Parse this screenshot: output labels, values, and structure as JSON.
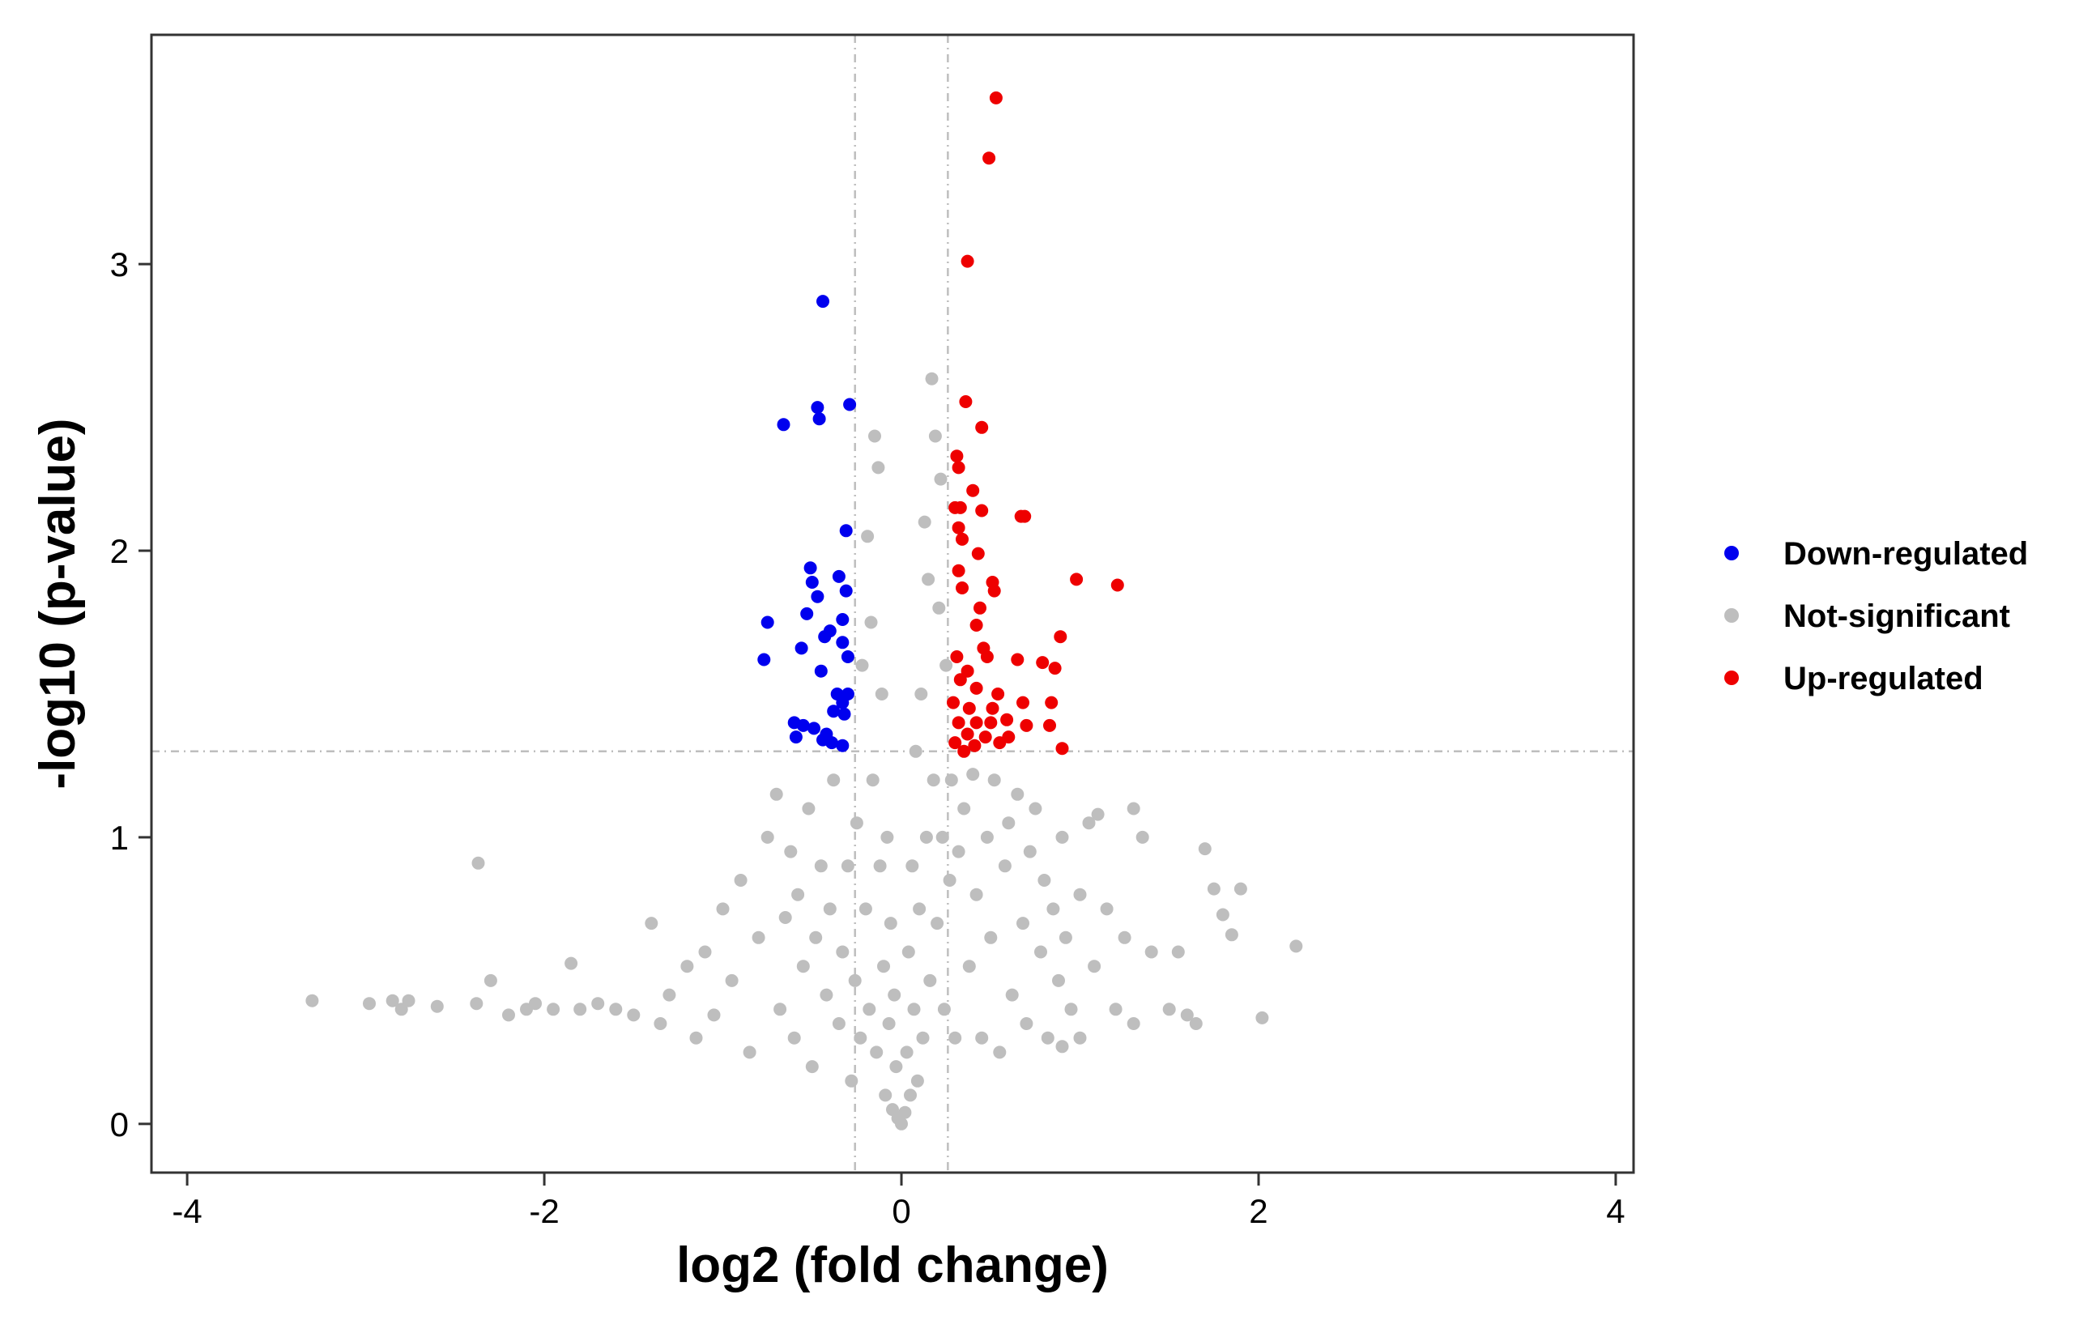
{
  "chart_data": {
    "type": "scatter",
    "title": "",
    "xlabel": "log2 (fold change)",
    "ylabel": "-log10 (p-value)",
    "xlim": [
      -4.2,
      4.1
    ],
    "ylim": [
      -0.17,
      3.8
    ],
    "xticks": [
      -4,
      -2,
      0,
      2,
      4
    ],
    "xtick_labels": [
      "-4",
      "-2",
      "0",
      "2",
      "4"
    ],
    "yticks": [
      0,
      1,
      2,
      3
    ],
    "ytick_labels": [
      "0",
      "1",
      "2",
      "3"
    ],
    "grid": false,
    "legend_position": "right",
    "thresholds": {
      "x": [
        -0.26,
        0.26
      ],
      "y": 1.3
    },
    "colors": {
      "down": "#0000EE",
      "ns": "#BEBEBE",
      "up": "#EE0000",
      "threshold_line": "#BEBEBE",
      "frame": "#333333"
    },
    "series": [
      {
        "name": "Down-regulated",
        "color": "#0000EE",
        "points": [
          [
            -0.44,
            2.87
          ],
          [
            -0.47,
            2.5
          ],
          [
            -0.46,
            2.46
          ],
          [
            -0.29,
            2.51
          ],
          [
            -0.66,
            2.44
          ],
          [
            -0.31,
            2.07
          ],
          [
            -0.51,
            1.94
          ],
          [
            -0.5,
            1.89
          ],
          [
            -0.35,
            1.91
          ],
          [
            -0.47,
            1.84
          ],
          [
            -0.31,
            1.86
          ],
          [
            -0.53,
            1.78
          ],
          [
            -0.4,
            1.72
          ],
          [
            -0.33,
            1.76
          ],
          [
            -0.75,
            1.75
          ],
          [
            -0.43,
            1.7
          ],
          [
            -0.56,
            1.66
          ],
          [
            -0.33,
            1.68
          ],
          [
            -0.77,
            1.62
          ],
          [
            -0.3,
            1.63
          ],
          [
            -0.45,
            1.58
          ],
          [
            -0.36,
            1.5
          ],
          [
            -0.3,
            1.5
          ],
          [
            -0.33,
            1.47
          ],
          [
            -0.38,
            1.44
          ],
          [
            -0.32,
            1.43
          ],
          [
            -0.6,
            1.4
          ],
          [
            -0.55,
            1.39
          ],
          [
            -0.49,
            1.38
          ],
          [
            -0.44,
            1.34
          ],
          [
            -0.39,
            1.33
          ],
          [
            -0.33,
            1.32
          ],
          [
            -0.59,
            1.35
          ],
          [
            -0.42,
            1.36
          ]
        ]
      },
      {
        "name": "Not-significant",
        "color": "#BEBEBE",
        "points": [
          [
            -3.3,
            0.43
          ],
          [
            -2.98,
            0.42
          ],
          [
            -2.85,
            0.43
          ],
          [
            -2.8,
            0.4
          ],
          [
            -2.76,
            0.43
          ],
          [
            -2.6,
            0.41
          ],
          [
            -2.37,
            0.91
          ],
          [
            -2.38,
            0.42
          ],
          [
            -2.3,
            0.5
          ],
          [
            -2.2,
            0.38
          ],
          [
            -2.1,
            0.4
          ],
          [
            -2.05,
            0.42
          ],
          [
            -1.95,
            0.4
          ],
          [
            -1.85,
            0.56
          ],
          [
            -1.8,
            0.4
          ],
          [
            -1.7,
            0.42
          ],
          [
            -1.6,
            0.4
          ],
          [
            -1.5,
            0.38
          ],
          [
            -1.4,
            0.7
          ],
          [
            -1.35,
            0.35
          ],
          [
            -1.3,
            0.45
          ],
          [
            -1.2,
            0.55
          ],
          [
            -1.15,
            0.3
          ],
          [
            -1.1,
            0.6
          ],
          [
            -1.05,
            0.38
          ],
          [
            -1.0,
            0.75
          ],
          [
            -0.95,
            0.5
          ],
          [
            -0.9,
            0.85
          ],
          [
            -0.85,
            0.25
          ],
          [
            -0.8,
            0.65
          ],
          [
            -0.75,
            1.0
          ],
          [
            -0.7,
            1.15
          ],
          [
            -0.68,
            0.4
          ],
          [
            -0.65,
            0.72
          ],
          [
            -0.62,
            0.95
          ],
          [
            -0.6,
            0.3
          ],
          [
            -0.58,
            0.8
          ],
          [
            -0.55,
            0.55
          ],
          [
            -0.52,
            1.1
          ],
          [
            -0.5,
            0.2
          ],
          [
            -0.48,
            0.65
          ],
          [
            -0.45,
            0.9
          ],
          [
            -0.42,
            0.45
          ],
          [
            -0.4,
            0.75
          ],
          [
            -0.38,
            1.2
          ],
          [
            -0.35,
            0.35
          ],
          [
            -0.33,
            0.6
          ],
          [
            -0.3,
            0.9
          ],
          [
            -0.28,
            0.15
          ],
          [
            -0.26,
            0.5
          ],
          [
            -0.25,
            1.05
          ],
          [
            -0.23,
            0.3
          ],
          [
            -0.22,
            1.6
          ],
          [
            -0.2,
            0.75
          ],
          [
            -0.19,
            2.05
          ],
          [
            -0.18,
            0.4
          ],
          [
            -0.17,
            1.75
          ],
          [
            -0.16,
            1.2
          ],
          [
            -0.15,
            2.4
          ],
          [
            -0.14,
            0.25
          ],
          [
            -0.13,
            2.29
          ],
          [
            -0.12,
            0.9
          ],
          [
            -0.11,
            1.5
          ],
          [
            -0.1,
            0.55
          ],
          [
            -0.09,
            0.1
          ],
          [
            -0.08,
            1.0
          ],
          [
            -0.07,
            0.35
          ],
          [
            -0.06,
            0.7
          ],
          [
            -0.05,
            0.05
          ],
          [
            -0.04,
            0.45
          ],
          [
            -0.03,
            0.2
          ],
          [
            -0.02,
            0.02
          ],
          [
            0.0,
            0.0
          ],
          [
            0.02,
            0.04
          ],
          [
            0.03,
            0.25
          ],
          [
            0.04,
            0.6
          ],
          [
            0.05,
            0.1
          ],
          [
            0.06,
            0.9
          ],
          [
            0.07,
            0.4
          ],
          [
            0.08,
            1.3
          ],
          [
            0.09,
            0.15
          ],
          [
            0.1,
            0.75
          ],
          [
            0.11,
            1.5
          ],
          [
            0.12,
            0.3
          ],
          [
            0.13,
            2.1
          ],
          [
            0.14,
            1.0
          ],
          [
            0.15,
            1.9
          ],
          [
            0.16,
            0.5
          ],
          [
            0.17,
            2.6
          ],
          [
            0.18,
            1.2
          ],
          [
            0.19,
            2.4
          ],
          [
            0.2,
            0.7
          ],
          [
            0.21,
            1.8
          ],
          [
            0.22,
            2.25
          ],
          [
            0.23,
            1.0
          ],
          [
            0.24,
            0.4
          ],
          [
            0.25,
            1.6
          ],
          [
            0.27,
            0.85
          ],
          [
            0.28,
            1.2
          ],
          [
            0.3,
            0.3
          ],
          [
            0.32,
            0.95
          ],
          [
            0.35,
            1.1
          ],
          [
            0.38,
            0.55
          ],
          [
            0.4,
            1.22
          ],
          [
            0.42,
            0.8
          ],
          [
            0.45,
            0.3
          ],
          [
            0.48,
            1.0
          ],
          [
            0.5,
            0.65
          ],
          [
            0.52,
            1.2
          ],
          [
            0.55,
            0.25
          ],
          [
            0.58,
            0.9
          ],
          [
            0.6,
            1.05
          ],
          [
            0.62,
            0.45
          ],
          [
            0.65,
            1.15
          ],
          [
            0.68,
            0.7
          ],
          [
            0.7,
            0.35
          ],
          [
            0.72,
            0.95
          ],
          [
            0.75,
            1.1
          ],
          [
            0.78,
            0.6
          ],
          [
            0.8,
            0.85
          ],
          [
            0.82,
            0.3
          ],
          [
            0.85,
            0.75
          ],
          [
            0.88,
            0.5
          ],
          [
            0.9,
            1.0
          ],
          [
            0.92,
            0.65
          ],
          [
            0.95,
            0.4
          ],
          [
            1.0,
            0.8
          ],
          [
            1.05,
            1.05
          ],
          [
            1.08,
            0.55
          ],
          [
            1.1,
            1.08
          ],
          [
            1.15,
            0.75
          ],
          [
            1.2,
            0.4
          ],
          [
            1.25,
            0.65
          ],
          [
            1.3,
            1.1
          ],
          [
            1.35,
            1.0
          ],
          [
            1.4,
            0.6
          ],
          [
            1.5,
            0.4
          ],
          [
            1.55,
            0.6
          ],
          [
            1.6,
            0.38
          ],
          [
            1.65,
            0.35
          ],
          [
            1.7,
            0.96
          ],
          [
            1.75,
            0.82
          ],
          [
            1.8,
            0.73
          ],
          [
            1.85,
            0.66
          ],
          [
            1.9,
            0.82
          ],
          [
            2.02,
            0.37
          ],
          [
            2.21,
            0.62
          ],
          [
            1.3,
            0.35
          ],
          [
            1.0,
            0.3
          ],
          [
            0.9,
            0.27
          ]
        ]
      },
      {
        "name": "Up-regulated",
        "color": "#EE0000",
        "points": [
          [
            0.53,
            3.58
          ],
          [
            0.49,
            3.37
          ],
          [
            0.37,
            3.01
          ],
          [
            0.36,
            2.52
          ],
          [
            0.45,
            2.43
          ],
          [
            0.31,
            2.33
          ],
          [
            0.32,
            2.29
          ],
          [
            0.4,
            2.21
          ],
          [
            0.3,
            2.15
          ],
          [
            0.33,
            2.15
          ],
          [
            0.45,
            2.14
          ],
          [
            0.67,
            2.12
          ],
          [
            0.69,
            2.12
          ],
          [
            0.32,
            2.08
          ],
          [
            0.34,
            2.04
          ],
          [
            0.43,
            1.99
          ],
          [
            0.32,
            1.93
          ],
          [
            0.98,
            1.9
          ],
          [
            1.21,
            1.88
          ],
          [
            0.51,
            1.89
          ],
          [
            0.34,
            1.87
          ],
          [
            0.52,
            1.86
          ],
          [
            0.44,
            1.8
          ],
          [
            0.42,
            1.74
          ],
          [
            0.89,
            1.7
          ],
          [
            0.46,
            1.66
          ],
          [
            0.48,
            1.63
          ],
          [
            0.65,
            1.62
          ],
          [
            0.31,
            1.63
          ],
          [
            0.79,
            1.61
          ],
          [
            0.86,
            1.59
          ],
          [
            0.37,
            1.58
          ],
          [
            0.33,
            1.55
          ],
          [
            0.42,
            1.52
          ],
          [
            0.54,
            1.5
          ],
          [
            0.68,
            1.47
          ],
          [
            0.84,
            1.47
          ],
          [
            0.29,
            1.47
          ],
          [
            0.38,
            1.45
          ],
          [
            0.51,
            1.45
          ],
          [
            0.59,
            1.41
          ],
          [
            0.32,
            1.4
          ],
          [
            0.42,
            1.4
          ],
          [
            0.7,
            1.39
          ],
          [
            0.83,
            1.39
          ],
          [
            0.37,
            1.36
          ],
          [
            0.47,
            1.35
          ],
          [
            0.55,
            1.33
          ],
          [
            0.3,
            1.33
          ],
          [
            0.41,
            1.32
          ],
          [
            0.9,
            1.31
          ],
          [
            0.35,
            1.3
          ],
          [
            0.6,
            1.35
          ],
          [
            0.5,
            1.4
          ]
        ]
      }
    ]
  }
}
